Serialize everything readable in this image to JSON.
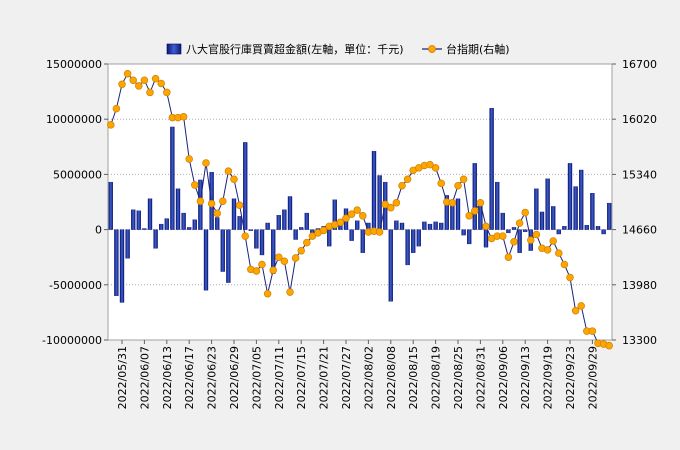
{
  "chart_data": {
    "type": "bar+line",
    "legend": {
      "bar_label": "八大官股行庫買賣超金額(左軸，單位：千元)",
      "line_label": "台指期(右軸)",
      "placement": "top"
    },
    "left_axis": {
      "ylim": [
        -10000000,
        15000000
      ],
      "ticks": [
        -10000000,
        -5000000,
        0,
        5000000,
        10000000,
        15000000
      ],
      "tick_labels": [
        "-10000000",
        "-5000000",
        "0",
        "5000000",
        "10000000",
        "15000000"
      ]
    },
    "right_axis": {
      "ylim": [
        13300,
        16700
      ],
      "ticks": [
        13300,
        13980,
        14660,
        15340,
        16020,
        16700
      ],
      "tick_labels": [
        "13300",
        "13980",
        "14660",
        "15340",
        "16020",
        "16700"
      ]
    },
    "x_tick_labels": [
      {
        "index": 2,
        "label": "2022/05/31"
      },
      {
        "index": 6,
        "label": "2022/06/07"
      },
      {
        "index": 10,
        "label": "2022/06/13"
      },
      {
        "index": 14,
        "label": "2022/06/17"
      },
      {
        "index": 18,
        "label": "2022/06/23"
      },
      {
        "index": 22,
        "label": "2022/06/29"
      },
      {
        "index": 26,
        "label": "2022/07/05"
      },
      {
        "index": 30,
        "label": "2022/07/11"
      },
      {
        "index": 34,
        "label": "2022/07/15"
      },
      {
        "index": 38,
        "label": "2022/07/21"
      },
      {
        "index": 42,
        "label": "2022/07/27"
      },
      {
        "index": 46,
        "label": "2022/08/02"
      },
      {
        "index": 50,
        "label": "2022/08/08"
      },
      {
        "index": 54,
        "label": "2022/08/15"
      },
      {
        "index": 58,
        "label": "2022/08/19"
      },
      {
        "index": 62,
        "label": "2022/08/25"
      },
      {
        "index": 66,
        "label": "2022/08/31"
      },
      {
        "index": 70,
        "label": "2022/09/06"
      },
      {
        "index": 74,
        "label": "2022/09/13"
      },
      {
        "index": 78,
        "label": "2022/09/19"
      },
      {
        "index": 82,
        "label": "2022/09/23"
      },
      {
        "index": 86,
        "label": "2022/09/29"
      }
    ],
    "bar_values": [
      4300000,
      -6000000,
      -6600000,
      -2600000,
      1800000,
      1700000,
      100000,
      2800000,
      -1700000,
      500000,
      1000000,
      9300000,
      3700000,
      1500000,
      200000,
      900000,
      4500000,
      -5500000,
      5200000,
      1100000,
      -3800000,
      -4800000,
      2800000,
      1200000,
      7900000,
      -100000,
      -1700000,
      -2300000,
      600000,
      -4000000,
      1300000,
      1800000,
      3000000,
      -900000,
      200000,
      1500000,
      -500000,
      100000,
      300000,
      -1500000,
      2700000,
      800000,
      1900000,
      -1000000,
      800000,
      -2100000,
      600000,
      7100000,
      4900000,
      4300000,
      -6500000,
      800000,
      600000,
      -3200000,
      -2100000,
      -1500000,
      700000,
      500000,
      700000,
      600000,
      3100000,
      2500000,
      2800000,
      -500000,
      -1300000,
      6000000,
      2500000,
      -1600000,
      11000000,
      4300000,
      1500000,
      -300000,
      200000,
      -2100000,
      -200000,
      -1900000,
      3700000,
      1600000,
      4600000,
      2100000,
      -400000,
      300000,
      6000000,
      3900000,
      5400000,
      400000,
      3300000,
      300000,
      -400000,
      2400000
    ],
    "line_values": [
      15950,
      16150,
      16450,
      16580,
      16500,
      16430,
      16500,
      16350,
      16520,
      16460,
      16350,
      16040,
      16040,
      16050,
      15530,
      15210,
      15010,
      15480,
      14980,
      14860,
      15010,
      15380,
      15280,
      14960,
      14580,
      14170,
      14150,
      14230,
      13870,
      14160,
      14320,
      14270,
      13890,
      14310,
      14400,
      14500,
      14580,
      14620,
      14650,
      14700,
      14720,
      14750,
      14800,
      14850,
      14900,
      14830,
      14630,
      14640,
      14630,
      14970,
      14930,
      14990,
      15200,
      15280,
      15390,
      15420,
      15450,
      15460,
      15420,
      15230,
      15000,
      14990,
      15200,
      15280,
      14830,
      14890,
      14990,
      14700,
      14550,
      14580,
      14580,
      14320,
      14510,
      14740,
      14870,
      14530,
      14600,
      14430,
      14410,
      14520,
      14370,
      14230,
      14070,
      13660,
      13720,
      13410,
      13410,
      13260,
      13250,
      13230
    ],
    "grid": "horizontal-dotted"
  },
  "colors": {
    "bar_fill": "#1e3a9c",
    "bar_edge": "#000080",
    "line": "#1a237e",
    "marker_fill": "#ffa500",
    "marker_edge": "#cc8000",
    "plot_bg": "#ffffff",
    "page_bg": "#f0f0f0"
  }
}
